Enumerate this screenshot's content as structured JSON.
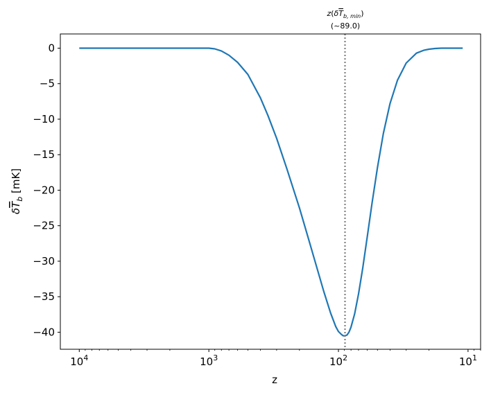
{
  "chart_data": {
    "type": "line",
    "xlabel": "z",
    "ylabel": "δT̅_b [mK]",
    "x_scale": "log",
    "x_inverted": true,
    "xlim": [
      14000,
      8
    ],
    "ylim": [
      -42.4,
      2.0
    ],
    "x_ticks": [
      10000,
      1000,
      100,
      10
    ],
    "x_tick_labels": [
      "10^4",
      "10^3",
      "10^2",
      "10^1"
    ],
    "y_ticks": [
      0,
      -5,
      -10,
      -15,
      -20,
      -25,
      -30,
      -35,
      -40
    ],
    "y_tick_labels": [
      "0",
      "−5",
      "−10",
      "−15",
      "−20",
      "−25",
      "−30",
      "−35",
      "−40"
    ],
    "grid": false,
    "series": [
      {
        "color": "#1f77b4",
        "x": [
          10000,
          5000,
          2000,
          1300,
          1100,
          1000,
          900,
          800,
          700,
          600,
          500,
          400,
          350,
          300,
          250,
          200,
          170,
          150,
          130,
          115,
          105,
          100,
          95,
          92,
          89,
          86,
          83,
          80,
          75,
          70,
          65,
          60,
          55,
          50,
          45,
          40,
          35,
          30,
          25,
          22,
          20,
          18,
          16,
          14,
          12,
          11
        ],
        "y": [
          0,
          0,
          0,
          0,
          0,
          0,
          -0.1,
          -0.4,
          -1.0,
          -2.0,
          -3.7,
          -7.0,
          -9.5,
          -12.7,
          -17.0,
          -22.5,
          -26.9,
          -30.3,
          -34.2,
          -37.3,
          -39.2,
          -39.9,
          -40.3,
          -40.5,
          -40.5,
          -40.4,
          -40.0,
          -39.3,
          -37.4,
          -34.6,
          -31.0,
          -26.6,
          -21.8,
          -16.8,
          -12.0,
          -7.8,
          -4.5,
          -2.1,
          -0.7,
          -0.3,
          -0.15,
          -0.05,
          0,
          0,
          0,
          0
        ]
      }
    ],
    "annotations": [
      {
        "type": "vline",
        "x": 89.0,
        "style": "dotted",
        "color": "#808080",
        "label_line1": "z(δT̅_b,min)",
        "label_line2": "(~89.0)"
      }
    ]
  }
}
